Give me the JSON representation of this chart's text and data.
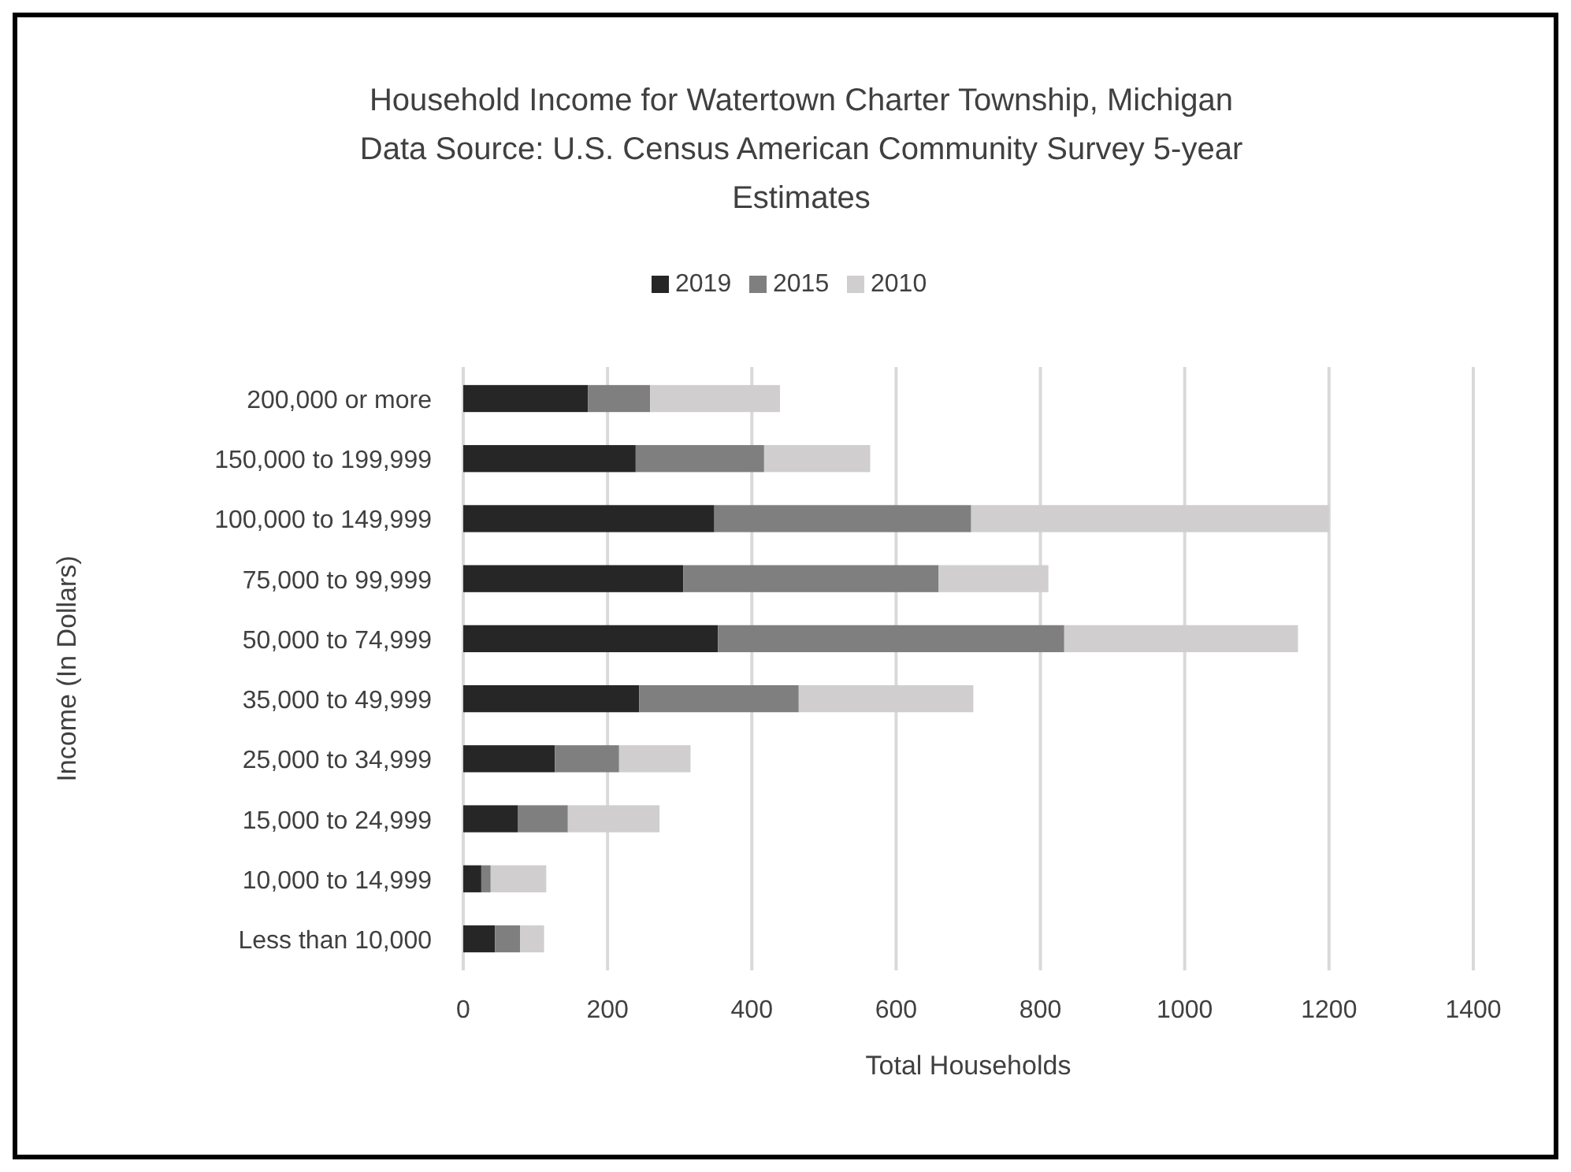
{
  "chart_data": {
    "type": "bar",
    "orientation": "horizontal",
    "stacked": true,
    "title": "Household Income for Watertown Charter Township, Michigan\nData Source: U.S. Census American Community Survey 5-year\nEstimates",
    "xlabel": "Total Households",
    "ylabel": "Income (In Dollars)",
    "categories": [
      "200,000 or more",
      "150,000 to 199,999",
      "100,000 to 149,999",
      "75,000 to 99,999",
      "50,000 to 74,999",
      "35,000 to 49,999",
      "25,000 to 34,999",
      "15,000 to 24,999",
      "10,000 to 14,999",
      "Less than 10,000"
    ],
    "series": [
      {
        "name": "2019",
        "color": "#262626",
        "values": [
          173,
          239,
          348,
          305,
          353,
          244,
          127,
          76,
          25,
          44
        ]
      },
      {
        "name": "2015",
        "color": "#7f7f7f",
        "values": [
          86,
          178,
          356,
          354,
          480,
          221,
          89,
          69,
          13,
          35
        ]
      },
      {
        "name": "2010",
        "color": "#d0cece",
        "values": [
          180,
          147,
          496,
          152,
          324,
          242,
          99,
          127,
          77,
          33
        ]
      }
    ],
    "xlim": [
      0,
      1400
    ],
    "xticks": [
      0,
      200,
      400,
      600,
      800,
      1000,
      1200,
      1400
    ],
    "grid": "x",
    "legend": "top"
  }
}
